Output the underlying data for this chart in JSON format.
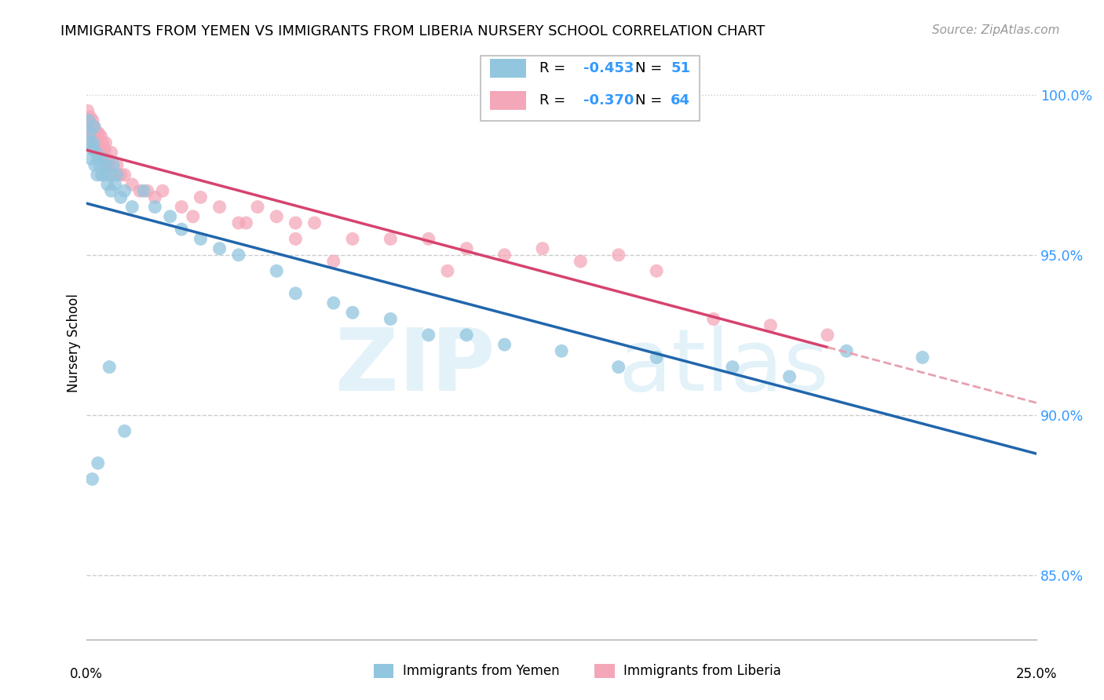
{
  "title": "IMMIGRANTS FROM YEMEN VS IMMIGRANTS FROM LIBERIA NURSERY SCHOOL CORRELATION CHART",
  "source": "Source: ZipAtlas.com",
  "ylabel": "Nursery School",
  "xmin": 0.0,
  "xmax": 25.0,
  "ymin": 83.0,
  "ymax": 101.5,
  "blue_color": "#92c5de",
  "pink_color": "#f4a7b9",
  "blue_line_color": "#2166ac",
  "pink_line_color": "#d6436e",
  "pink_dash_color": "#e8a0b0",
  "ytick_vals": [
    85.0,
    90.0,
    95.0,
    100.0
  ],
  "ytick_labels": [
    "85.0%",
    "90.0%",
    "95.0%",
    "100.0%"
  ],
  "blue_r": "-0.453",
  "blue_n": "51",
  "pink_r": "-0.370",
  "pink_n": "64",
  "yemen_x": [
    0.05,
    0.08,
    0.1,
    0.12,
    0.15,
    0.18,
    0.2,
    0.22,
    0.25,
    0.28,
    0.3,
    0.35,
    0.4,
    0.42,
    0.45,
    0.5,
    0.55,
    0.6,
    0.65,
    0.7,
    0.75,
    0.8,
    0.9,
    1.0,
    1.2,
    1.5,
    1.8,
    2.2,
    2.5,
    3.0,
    3.5,
    4.0,
    5.0,
    5.5,
    6.5,
    7.0,
    8.0,
    9.0,
    10.0,
    11.0,
    12.5,
    14.0,
    15.0,
    17.0,
    18.5,
    20.0,
    22.0,
    0.15,
    0.3,
    0.6,
    1.0
  ],
  "yemen_y": [
    99.2,
    98.8,
    98.5,
    98.0,
    98.3,
    98.5,
    99.0,
    97.8,
    98.2,
    97.5,
    98.0,
    97.8,
    97.5,
    98.0,
    97.5,
    97.8,
    97.2,
    97.5,
    97.0,
    97.8,
    97.2,
    97.5,
    96.8,
    97.0,
    96.5,
    97.0,
    96.5,
    96.2,
    95.8,
    95.5,
    95.2,
    95.0,
    94.5,
    93.8,
    93.5,
    93.2,
    93.0,
    92.5,
    92.5,
    92.2,
    92.0,
    91.5,
    91.8,
    91.5,
    91.2,
    92.0,
    91.8,
    88.0,
    88.5,
    91.5,
    89.5
  ],
  "liberia_x": [
    0.03,
    0.05,
    0.07,
    0.1,
    0.12,
    0.14,
    0.16,
    0.18,
    0.2,
    0.22,
    0.25,
    0.28,
    0.3,
    0.32,
    0.35,
    0.38,
    0.4,
    0.42,
    0.45,
    0.48,
    0.5,
    0.55,
    0.6,
    0.65,
    0.7,
    0.8,
    0.9,
    1.0,
    1.2,
    1.4,
    1.6,
    1.8,
    2.0,
    2.5,
    3.0,
    3.5,
    4.0,
    4.5,
    5.0,
    5.5,
    6.0,
    7.0,
    8.0,
    9.0,
    10.0,
    11.0,
    12.0,
    13.0,
    14.0,
    15.0,
    0.08,
    0.15,
    0.25,
    0.35,
    0.45,
    0.55,
    2.8,
    16.5,
    5.5,
    6.5,
    4.2,
    9.5,
    18.0,
    19.5
  ],
  "liberia_y": [
    99.5,
    99.2,
    99.0,
    99.3,
    99.0,
    98.8,
    99.2,
    98.8,
    99.0,
    98.7,
    98.5,
    98.8,
    98.5,
    98.8,
    98.3,
    98.7,
    98.2,
    98.5,
    98.0,
    98.3,
    98.5,
    98.0,
    97.8,
    98.2,
    97.5,
    97.8,
    97.5,
    97.5,
    97.2,
    97.0,
    97.0,
    96.8,
    97.0,
    96.5,
    96.8,
    96.5,
    96.0,
    96.5,
    96.2,
    96.0,
    96.0,
    95.5,
    95.5,
    95.5,
    95.2,
    95.0,
    95.2,
    94.8,
    95.0,
    94.5,
    98.5,
    99.0,
    98.5,
    98.2,
    98.2,
    97.8,
    96.2,
    93.0,
    95.5,
    94.8,
    96.0,
    94.5,
    92.8,
    92.5
  ]
}
